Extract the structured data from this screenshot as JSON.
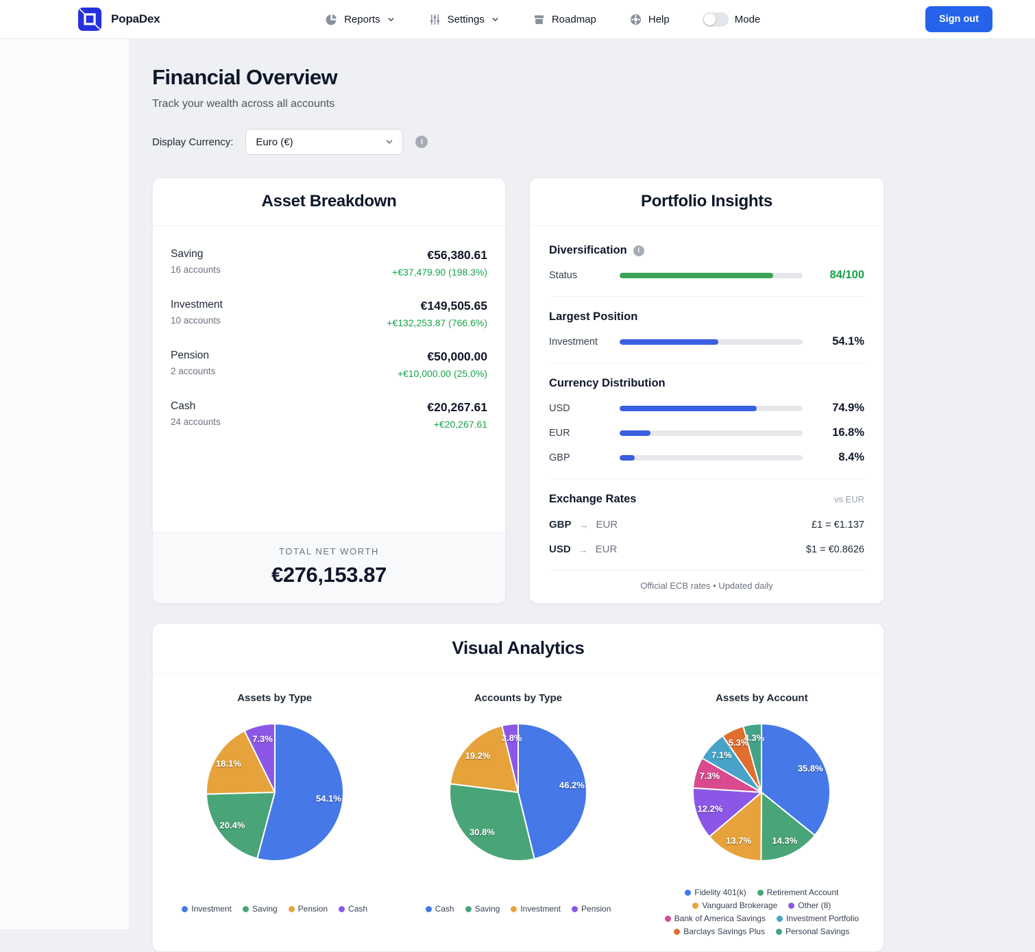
{
  "brand": {
    "name": "PopaDex"
  },
  "icons": {
    "reports": "pie-chart",
    "settings": "sliders",
    "roadmap": "archive-box",
    "help": "lifebuoy",
    "info": "info-circle",
    "arrow": "→",
    "chevron": "chevron-down"
  },
  "nav": {
    "reports": "Reports",
    "settings": "Settings",
    "roadmap": "Roadmap",
    "help": "Help",
    "mode": "Mode",
    "sign_out": "Sign out"
  },
  "page": {
    "title": "Financial Overview",
    "subtitle": "Track your wealth across all accounts"
  },
  "currency": {
    "label": "Display Currency:",
    "selected": "Euro (€)"
  },
  "asset_breakdown": {
    "title": "Asset Breakdown",
    "rows": [
      {
        "label": "Saving",
        "accounts": "16 accounts",
        "value": "€56,380.61",
        "change": "+€37,479.90 (198.3%)"
      },
      {
        "label": "Investment",
        "accounts": "10 accounts",
        "value": "€149,505.65",
        "change": "+€132,253.87 (766.6%)"
      },
      {
        "label": "Pension",
        "accounts": "2 accounts",
        "value": "€50,000.00",
        "change": "+€10,000.00 (25.0%)"
      },
      {
        "label": "Cash",
        "accounts": "24 accounts",
        "value": "€20,267.61",
        "change": "+€20,267.61"
      }
    ],
    "total_label": "TOTAL NET WORTH",
    "total_value": "€276,153.87"
  },
  "portfolio": {
    "title": "Portfolio Insights",
    "diversification": {
      "heading": "Diversification",
      "row_label": "Status",
      "value": 84,
      "display": "84/100"
    },
    "largest_position": {
      "heading": "Largest Position",
      "row_label": "Investment",
      "value": 54.1,
      "display": "54.1%"
    },
    "currency_distribution": {
      "heading": "Currency Distribution",
      "rows": [
        {
          "label": "USD",
          "value": 74.9,
          "display": "74.9%"
        },
        {
          "label": "EUR",
          "value": 16.8,
          "display": "16.8%"
        },
        {
          "label": "GBP",
          "value": 8.4,
          "display": "8.4%"
        }
      ]
    },
    "exchange_rates": {
      "heading": "Exchange Rates",
      "note": "vs EUR",
      "rows": [
        {
          "from": "GBP",
          "to": "EUR",
          "rate": "£1 = €1.137"
        },
        {
          "from": "USD",
          "to": "EUR",
          "rate": "$1 = €0.8626"
        }
      ],
      "footer": "Official ECB rates • Updated daily"
    }
  },
  "visual_analytics": {
    "title": "Visual Analytics"
  },
  "chart_data": [
    {
      "type": "pie",
      "title": "Assets by Type",
      "labels": [
        "Investment",
        "Saving",
        "Pension",
        "Cash"
      ],
      "values": [
        54.1,
        20.4,
        18.1,
        7.3
      ],
      "colors": [
        "#4678e8",
        "#49a578",
        "#e7a33b",
        "#8c57e6"
      ],
      "legend_position": "bottom"
    },
    {
      "type": "pie",
      "title": "Accounts by Type",
      "labels": [
        "Cash",
        "Saving",
        "Investment",
        "Pension"
      ],
      "values": [
        46.2,
        30.8,
        19.2,
        3.8
      ],
      "colors": [
        "#4678e8",
        "#49a578",
        "#e7a33b",
        "#8c57e6"
      ],
      "legend_position": "bottom"
    },
    {
      "type": "pie",
      "title": "Assets by Account",
      "labels": [
        "Fidelity 401(k)",
        "Retirement Account",
        "Vanguard Brokerage",
        "Other (8)",
        "Bank of America Savings",
        "Investment Portfolio",
        "Barclays Savings Plus",
        "Personal Savings"
      ],
      "values": [
        35.8,
        14.3,
        13.7,
        12.2,
        7.3,
        7.1,
        5.3,
        4.3
      ],
      "colors": [
        "#4678e8",
        "#49a578",
        "#e7a33b",
        "#8c57e6",
        "#d94a8e",
        "#47a3c8",
        "#e06e2e",
        "#43a389"
      ],
      "legend_position": "bottom"
    }
  ]
}
